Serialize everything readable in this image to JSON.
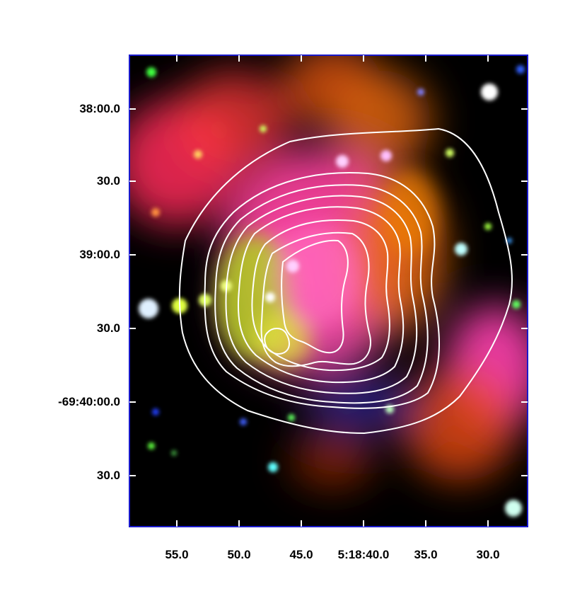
{
  "image": {
    "description_free": true,
    "frame_color": "#1a1acc",
    "contour_color": "#ffffff"
  },
  "axes": {
    "dec_ticks": [
      "38:00.0",
      "30.0",
      "39:00.0",
      "30.0",
      "-69:40:00.0",
      "30.0"
    ],
    "ra_ticks": [
      "55.0",
      "50.0",
      "45.0",
      "5:18:40.0",
      "35.0",
      "30.0"
    ]
  }
}
